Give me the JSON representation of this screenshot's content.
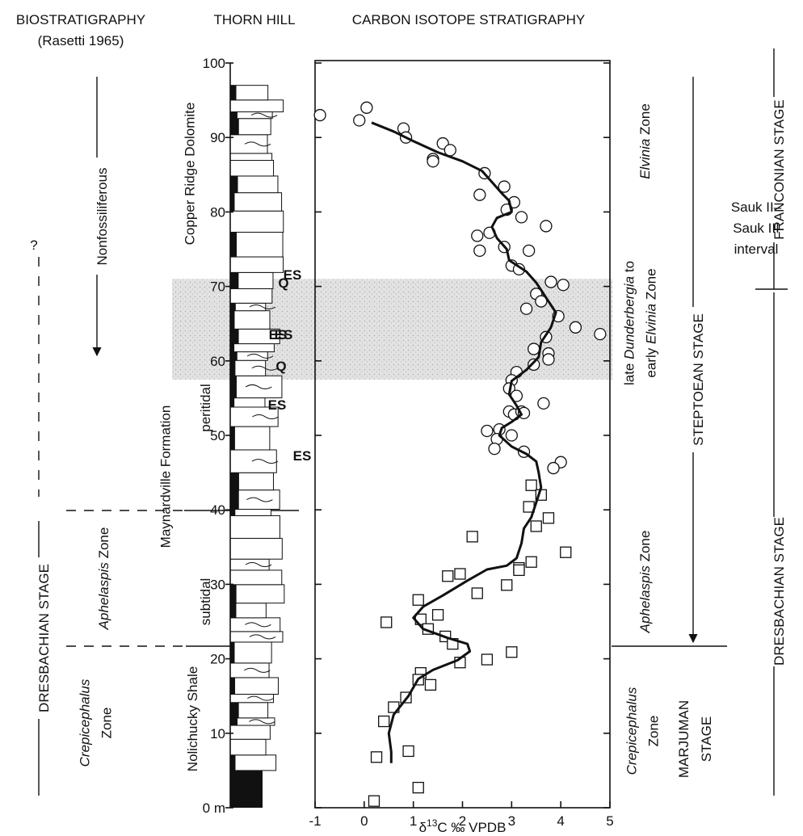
{
  "chart_data": {
    "type": "scatter",
    "labels": [
      {
        "lines": [
          [
            {
              "text": "BIOSTRATIGRAPHY"
            }
          ]
        ]
      },
      {
        "lines": [
          [
            {
              "text": "(Rasetti 1965)"
            }
          ]
        ]
      },
      {
        "lines": [
          [
            {
              "text": "THORN HILL"
            }
          ]
        ]
      },
      {
        "lines": [
          [
            {
              "text": "CARBON ISOTOPE STRATIGRAPHY"
            }
          ]
        ]
      },
      {
        "lines": [
          [
            {
              "text": "Nonfossiliferous"
            }
          ]
        ]
      },
      {
        "lines": [
          [
            {
              "text": "?"
            }
          ]
        ]
      },
      {
        "lines": [
          [
            {
              "text": "DRESBACHIAN STAGE"
            }
          ]
        ]
      },
      {
        "lines": [
          [
            {
              "text": "Aphelaspis",
              "italic": true
            },
            {
              "text": " Zone"
            }
          ]
        ]
      },
      {
        "lines": [
          [
            {
              "text": "Crepicephalus",
              "italic": true
            }
          ],
          [
            {
              "text": "Zone"
            }
          ]
        ]
      },
      {
        "lines": [
          [
            {
              "text": "Copper Ridge Dolomite"
            }
          ]
        ]
      },
      {
        "lines": [
          [
            {
              "text": "Maynardville Formation"
            }
          ]
        ]
      },
      {
        "lines": [
          [
            {
              "text": "peritidal"
            }
          ]
        ]
      },
      {
        "lines": [
          [
            {
              "text": "subtidal"
            }
          ]
        ]
      },
      {
        "lines": [
          [
            {
              "text": "Nolichucky Shale"
            }
          ]
        ]
      },
      {
        "lines": [
          [
            {
              "text": "Elvinia",
              "italic": true
            },
            {
              "text": " Zone"
            }
          ]
        ]
      },
      {
        "lines": [
          [
            {
              "text": "late "
            },
            {
              "text": "Dunderbergia",
              "italic": true
            },
            {
              "text": " to"
            }
          ],
          [
            {
              "text": "early "
            },
            {
              "text": "Elvinia",
              "italic": true
            },
            {
              "text": " Zone"
            }
          ]
        ]
      },
      {
        "lines": [
          [
            {
              "text": "Aphelaspis",
              "italic": true
            },
            {
              "text": " Zone"
            }
          ]
        ]
      },
      {
        "lines": [
          [
            {
              "text": "Crepicephalus",
              "italic": true
            }
          ],
          [
            {
              "text": "Zone"
            }
          ]
        ]
      },
      {
        "lines": [
          [
            {
              "text": "MARJUMAN"
            }
          ],
          [
            {
              "text": "STAGE"
            }
          ]
        ]
      },
      {
        "lines": [
          [
            {
              "text": "STEPTOEAN STAGE"
            }
          ]
        ]
      },
      {
        "lines": [
          [
            {
              "text": "FRANCONIAN STAGE"
            }
          ]
        ]
      },
      {
        "lines": [
          [
            {
              "text": "Sauk II–"
            }
          ],
          [
            {
              "text": "Sauk III"
            }
          ],
          [
            {
              "text": "interval"
            }
          ]
        ]
      },
      {
        "lines": [
          [
            {
              "text": "DRESBACHIAN STAGE"
            }
          ]
        ]
      },
      {
        "lines": [
          [
            {
              "text": "ES"
            }
          ]
        ]
      },
      {
        "lines": [
          [
            {
              "text": "Q"
            }
          ]
        ]
      },
      {
        "lines": [
          [
            {
              "text": "ES"
            }
          ]
        ]
      },
      {
        "lines": [
          [
            {
              "text": "ES"
            }
          ]
        ]
      },
      {
        "lines": [
          [
            {
              "text": "Q"
            }
          ]
        ]
      },
      {
        "lines": [
          [
            {
              "text": "ES"
            }
          ]
        ]
      },
      {
        "lines": [
          [
            {
              "text": "ES"
            }
          ]
        ]
      }
    ],
    "x_label": [
      {
        "text": "δ"
      },
      {
        "text": "13",
        "superscript": true
      },
      {
        "text": "C ‰ VPDB"
      }
    ],
    "xlim": [
      -1,
      5
    ],
    "xticks": [
      -1,
      0,
      1,
      2,
      3,
      4,
      5
    ],
    "ylim": [
      0,
      100
    ],
    "yticks": [
      {
        "value": 0,
        "label": "0 m"
      },
      10,
      20,
      30,
      40,
      50,
      60,
      70,
      80,
      90,
      100
    ],
    "shaded_interval": [
      57.5,
      71
    ],
    "series": [
      {
        "type": "scatter",
        "marker": "circle",
        "color": "#111111",
        "x": [
          -0.9,
          0.05,
          -0.1,
          0.8,
          0.85,
          1.6,
          1.75,
          1.4,
          1.4,
          2.45,
          2.85,
          2.35,
          3.05,
          2.9,
          3.2,
          3.7,
          2.3,
          2.55,
          2.35,
          2.85,
          3.35,
          3.0,
          3.15,
          3.8,
          4.05,
          3.5,
          3.6,
          3.3,
          3.95,
          4.3,
          4.8,
          3.7,
          3.45,
          3.75,
          3.75,
          3.45,
          3.1,
          3.0,
          2.95,
          3.65,
          3.1,
          2.95,
          3.05,
          3.2,
          3.25,
          2.5,
          2.75,
          2.7,
          3.0,
          2.65,
          3.25,
          4.0,
          3.85
        ],
        "y": [
          93,
          94,
          92.3,
          91.2,
          90,
          89.2,
          88.3,
          87.1,
          86.8,
          85.2,
          83.4,
          82.3,
          81.3,
          80.3,
          79.3,
          78.1,
          76.8,
          77.2,
          74.8,
          75.3,
          74.8,
          72.8,
          72.3,
          70.6,
          70.2,
          69,
          68,
          67,
          66,
          64.5,
          63.6,
          63.2,
          61.6,
          61,
          60.2,
          59.5,
          58.5,
          57.4,
          56.3,
          54.3,
          55.3,
          53.2,
          52.8,
          53.2,
          53,
          50.6,
          50.8,
          49.5,
          50,
          48.2,
          47.8,
          46.4,
          45.6
        ]
      },
      {
        "type": "scatter",
        "marker": "square",
        "color": "#111111",
        "x": [
          3.4,
          3.6,
          3.35,
          3.75,
          3.5,
          4.1,
          2.2,
          3.4,
          3.15,
          3.15,
          1.95,
          1.7,
          2.9,
          2.3,
          1.1,
          1.5,
          1.15,
          0.45,
          1.3,
          1.65,
          1.8,
          3.0,
          2.5,
          1.95,
          1.15,
          1.1,
          1.35,
          0.85,
          0.6,
          0.4,
          0.25,
          0.9,
          1.1,
          0.2
        ],
        "y": [
          43.3,
          42,
          40.4,
          38.9,
          37.8,
          34.3,
          36.4,
          33,
          32.2,
          31.9,
          31.4,
          31.1,
          29.9,
          28.8,
          27.9,
          25.9,
          25.3,
          24.9,
          24,
          23,
          22,
          20.9,
          19.9,
          19.5,
          18.1,
          17.2,
          16.5,
          14.8,
          13.5,
          11.6,
          6.8,
          7.6,
          2.7,
          0.9
        ]
      },
      {
        "type": "line",
        "color": "#111111",
        "x": [
          0.15,
          0.6,
          1.0,
          1.5,
          2.0,
          2.4,
          2.6,
          2.8,
          2.95,
          3.0,
          2.7,
          2.6,
          2.7,
          2.9,
          2.95,
          3.3,
          3.5,
          3.7,
          3.9,
          3.8,
          3.6,
          3.55,
          3.3,
          3.0,
          2.95,
          3.1,
          3.2,
          3.0,
          2.8,
          2.75,
          3.0,
          3.3,
          3.5,
          3.55,
          3.6,
          3.5,
          3.4,
          3.25,
          3.2,
          3.1,
          2.9,
          2.5,
          2.1,
          1.6,
          1.2,
          1.0,
          1.2,
          1.7,
          2.1,
          2.15,
          1.9,
          1.4,
          1.1,
          0.9,
          0.6,
          0.5,
          0.55,
          0.55
        ],
        "y": [
          92,
          90.8,
          89.5,
          88,
          86.8,
          85.5,
          84,
          82.5,
          81.5,
          80,
          79.2,
          78,
          76.5,
          75,
          73.5,
          72,
          70.5,
          68.5,
          66.5,
          64.5,
          62.5,
          60.5,
          58.8,
          57.3,
          55.5,
          54,
          52.8,
          51.8,
          51,
          50,
          48.5,
          47.5,
          46.5,
          45,
          43,
          41,
          39,
          37.5,
          35.5,
          33.5,
          32.5,
          32,
          30.5,
          28.5,
          27,
          25.5,
          24,
          22.8,
          22,
          21,
          19.8,
          18.5,
          17.3,
          15,
          12.5,
          10,
          7.5,
          6
        ]
      }
    ]
  }
}
